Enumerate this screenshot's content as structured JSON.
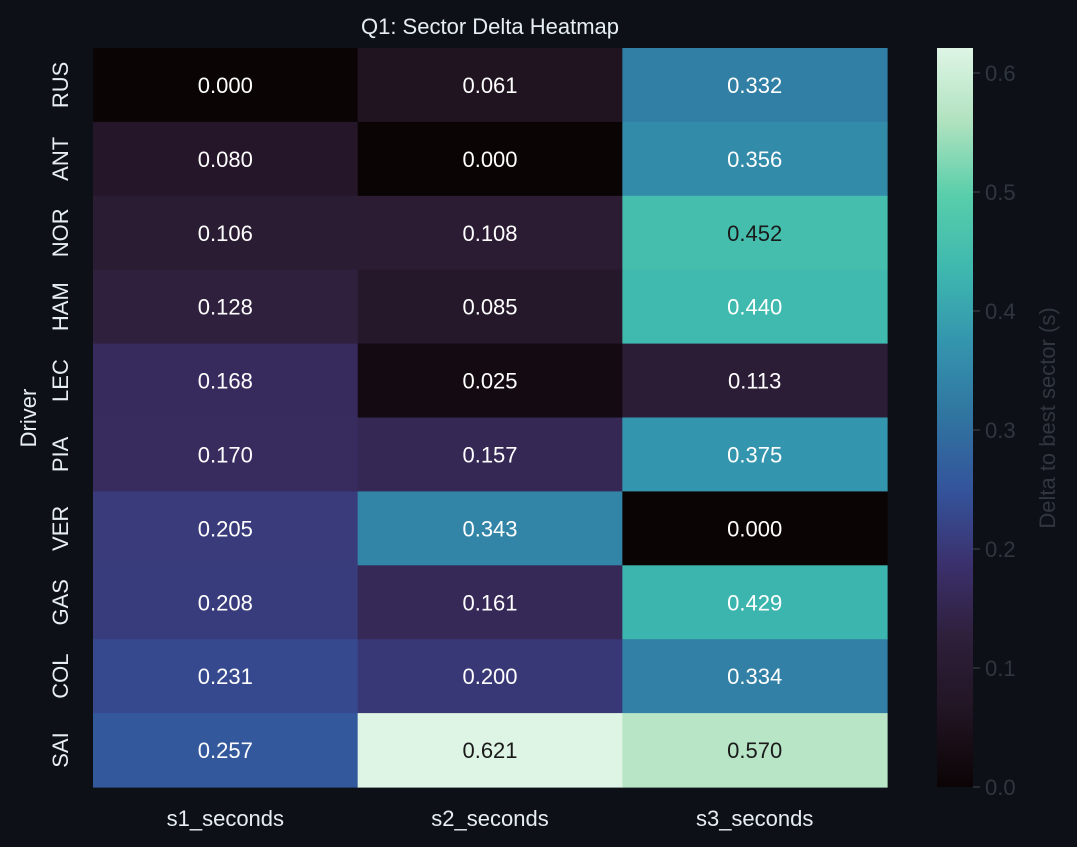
{
  "chart_data": {
    "type": "heatmap",
    "title": "Q1: Sector Delta Heatmap",
    "xlabel": "",
    "ylabel": "Driver",
    "columns": [
      "s1_seconds",
      "s2_seconds",
      "s3_seconds"
    ],
    "rows": [
      "RUS",
      "ANT",
      "NOR",
      "HAM",
      "LEC",
      "PIA",
      "VER",
      "GAS",
      "COL",
      "SAI"
    ],
    "values": [
      [
        0.0,
        0.061,
        0.332
      ],
      [
        0.08,
        0.0,
        0.356
      ],
      [
        0.106,
        0.108,
        0.452
      ],
      [
        0.128,
        0.085,
        0.44
      ],
      [
        0.168,
        0.025,
        0.113
      ],
      [
        0.17,
        0.157,
        0.375
      ],
      [
        0.205,
        0.343,
        0.0
      ],
      [
        0.208,
        0.161,
        0.429
      ],
      [
        0.231,
        0.2,
        0.334
      ],
      [
        0.257,
        0.621,
        0.57
      ]
    ],
    "colorbar": {
      "label": "Delta to best sector (s)",
      "min": 0.0,
      "max": 0.621,
      "ticks": [
        "0.0",
        "0.1",
        "0.2",
        "0.3",
        "0.4",
        "0.5",
        "0.6"
      ]
    },
    "colormap": "mako",
    "colors": {
      "background": "#0d1117",
      "text": "#e6edf3",
      "colorbar_text": "#30363d"
    }
  }
}
